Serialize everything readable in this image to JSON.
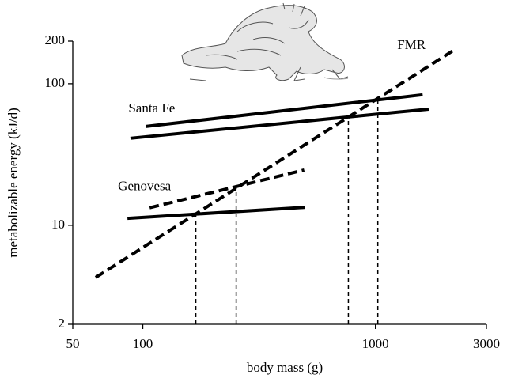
{
  "chart_data": {
    "type": "line",
    "x_label": "body mass (g)",
    "y_label": "metabolizable energy (kJ/d)",
    "log_x": true,
    "log_y": true,
    "xlim": [
      50,
      3000
    ],
    "xticks": [
      50,
      100,
      1000,
      3000
    ],
    "ylim": [
      2,
      200
    ],
    "yticks": [
      2,
      10,
      100,
      200
    ],
    "color": "#000000",
    "series": [
      {
        "name": "FMR",
        "lines": [
          {
            "dashed": true,
            "x": [
              62.7,
              2213
            ],
            "values": [
              4.28,
              176
            ]
          }
        ]
      },
      {
        "name": "Santa Fe",
        "lines": [
          {
            "dashed": false,
            "x": [
              103,
              1596
            ],
            "values": [
              49.9,
              83.6
            ]
          },
          {
            "dashed": false,
            "x": [
              88.5,
              1694
            ],
            "values": [
              41.2,
              66.2
            ]
          }
        ]
      },
      {
        "name": "Genovesa",
        "lines": [
          {
            "dashed": true,
            "x": [
              107,
              494
            ],
            "values": [
              13.3,
              24.6
            ]
          },
          {
            "dashed": false,
            "x": [
              85.9,
              499
            ],
            "values": [
              11.2,
              13.4
            ]
          }
        ]
      }
    ],
    "drop_lines": {
      "x": [
        169,
        252,
        765,
        1024
      ],
      "values": [
        12.0,
        19.3,
        60.5,
        80
      ]
    }
  }
}
